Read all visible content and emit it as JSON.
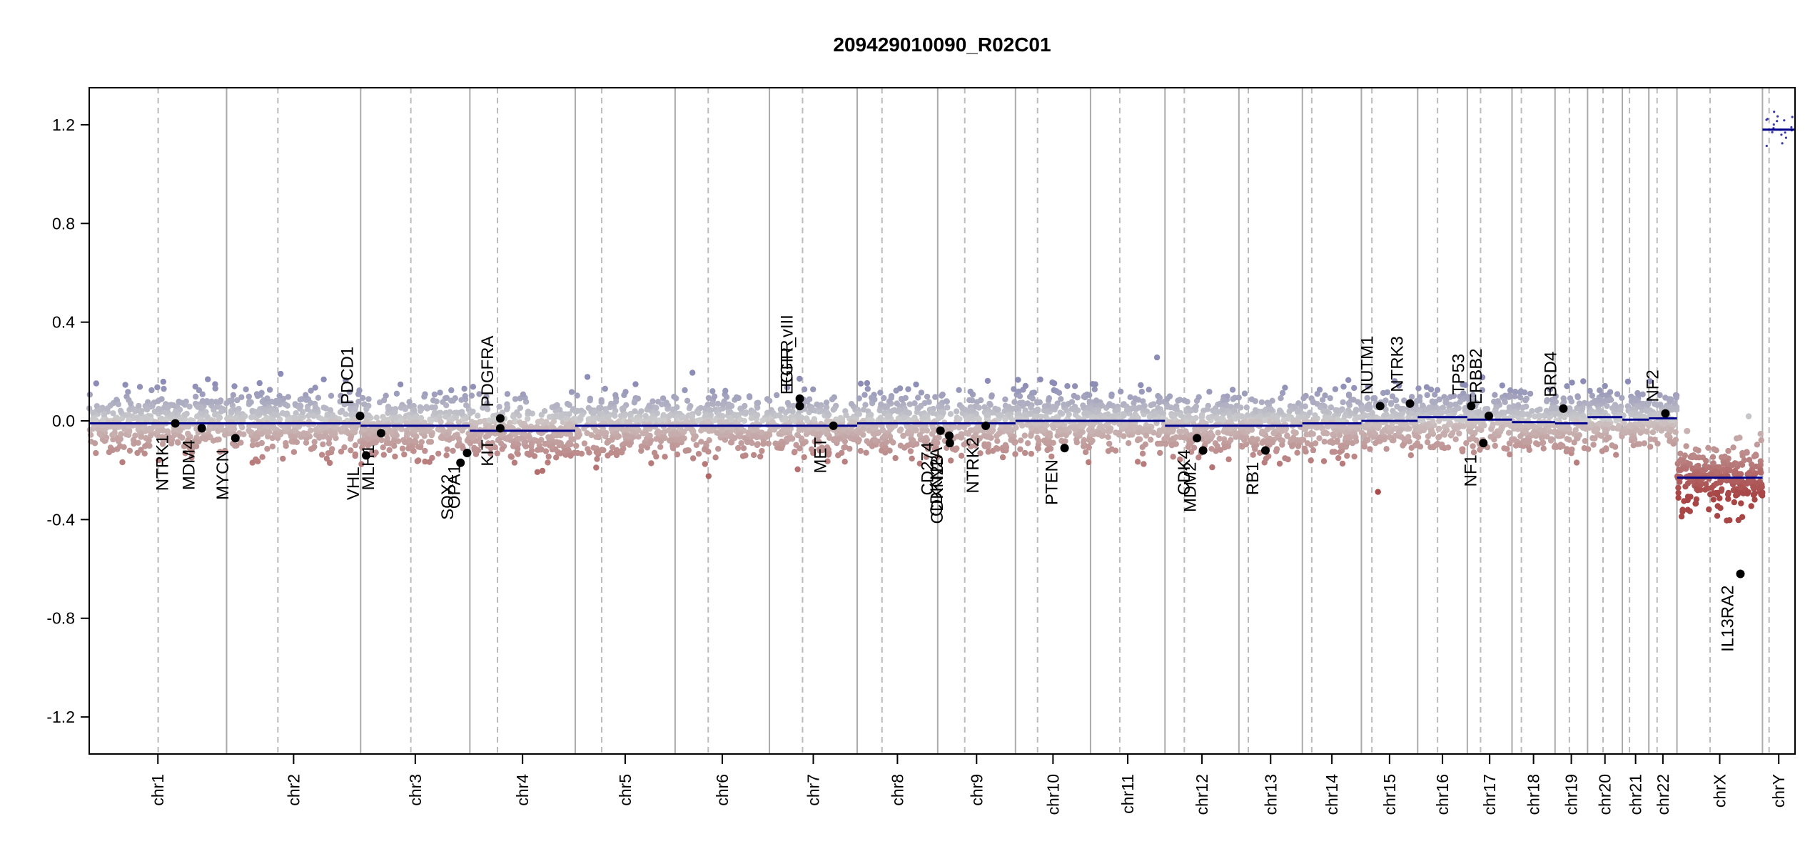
{
  "chart_data": {
    "type": "scatter",
    "title": "209429010090_R02C01",
    "xlabel": "",
    "ylabel": "",
    "ylim": [
      -1.35,
      1.35
    ],
    "yticks": [
      -1.2,
      -0.8,
      -0.4,
      0.0,
      0.4,
      0.8,
      1.2
    ],
    "ytick_labels": [
      "-1.2",
      "-0.8",
      "-0.4",
      "0.0",
      "0.4",
      "0.8",
      "1.2"
    ],
    "grid": false,
    "colors": {
      "gain": "#8e8eb4",
      "loss": "#a84a4a",
      "neutral": "#c8c8c8",
      "segment": "#00008b",
      "gene_point": "#000000",
      "chrom_boundary": "#aaaaaa",
      "centromere": "#bbbbbb"
    },
    "chromosomes": [
      {
        "name": "chr1",
        "length": 249,
        "centromere": 125,
        "segment_value": -0.01
      },
      {
        "name": "chr2",
        "length": 243,
        "centromere": 93,
        "segment_value": -0.01
      },
      {
        "name": "chr3",
        "length": 198,
        "centromere": 91,
        "segment_value": -0.02
      },
      {
        "name": "chr4",
        "length": 191,
        "centromere": 50,
        "segment_value": -0.04
      },
      {
        "name": "chr5",
        "length": 181,
        "centromere": 48,
        "segment_value": -0.02
      },
      {
        "name": "chr6",
        "length": 171,
        "centromere": 60,
        "segment_value": -0.02
      },
      {
        "name": "chr7",
        "length": 159,
        "centromere": 60,
        "segment_value": -0.02
      },
      {
        "name": "chr8",
        "length": 146,
        "centromere": 45,
        "segment_value": -0.01
      },
      {
        "name": "chr9",
        "length": 141,
        "centromere": 49,
        "segment_value": -0.01
      },
      {
        "name": "chr10",
        "length": 136,
        "centromere": 40,
        "segment_value": 0.0
      },
      {
        "name": "chr11",
        "length": 135,
        "centromere": 53,
        "segment_value": 0.0
      },
      {
        "name": "chr12",
        "length": 134,
        "centromere": 35,
        "segment_value": -0.02
      },
      {
        "name": "chr13",
        "length": 115,
        "centromere": 17,
        "segment_value": -0.02
      },
      {
        "name": "chr14",
        "length": 107,
        "centromere": 17,
        "segment_value": -0.01
      },
      {
        "name": "chr15",
        "length": 102,
        "centromere": 19,
        "segment_value": 0.0
      },
      {
        "name": "chr16",
        "length": 90,
        "centromere": 36,
        "segment_value": 0.015
      },
      {
        "name": "chr17",
        "length": 81,
        "centromere": 24,
        "segment_value": 0.005
      },
      {
        "name": "chr18",
        "length": 78,
        "centromere": 17,
        "segment_value": -0.005
      },
      {
        "name": "chr19",
        "length": 59,
        "centromere": 26,
        "segment_value": -0.01
      },
      {
        "name": "chr20",
        "length": 63,
        "centromere": 28,
        "segment_value": 0.015
      },
      {
        "name": "chr21",
        "length": 48,
        "centromere": 13,
        "segment_value": 0.005
      },
      {
        "name": "chr22",
        "length": 51,
        "centromere": 15,
        "segment_value": 0.01
      },
      {
        "name": "chrX",
        "length": 155,
        "centromere": 60,
        "segment_value": -0.23
      },
      {
        "name": "chrY",
        "length": 59,
        "centromere": 12,
        "segment_value": 1.18
      }
    ],
    "genes": [
      {
        "name": "NTRK1",
        "chr": "chr1",
        "pos": 156,
        "value": -0.01,
        "label_side": "below"
      },
      {
        "name": "MDM4",
        "chr": "chr1",
        "pos": 204,
        "value": -0.03,
        "label_side": "below"
      },
      {
        "name": "MYCN",
        "chr": "chr2",
        "pos": 16,
        "value": -0.07,
        "label_side": "below"
      },
      {
        "name": "PDCD1",
        "chr": "chr2",
        "pos": 242,
        "value": 0.02,
        "label_side": "above"
      },
      {
        "name": "VHL",
        "chr": "chr3",
        "pos": 10,
        "value": -0.14,
        "label_side": "below"
      },
      {
        "name": "MLH1",
        "chr": "chr3",
        "pos": 37,
        "value": -0.05,
        "label_side": "below"
      },
      {
        "name": "SOX2",
        "chr": "chr3",
        "pos": 181,
        "value": -0.17,
        "label_side": "below"
      },
      {
        "name": "OPA1",
        "chr": "chr3",
        "pos": 193,
        "value": -0.13,
        "label_side": "below"
      },
      {
        "name": "KIT",
        "chr": "chr4",
        "pos": 55,
        "value": -0.03,
        "label_side": "below"
      },
      {
        "name": "PDGFRA",
        "chr": "chr4",
        "pos": 55,
        "value": 0.01,
        "label_side": "above"
      },
      {
        "name": "EGFR",
        "chr": "chr7",
        "pos": 55,
        "value": 0.09,
        "label_side": "above"
      },
      {
        "name": "EGFR_vIII",
        "chr": "chr7",
        "pos": 55,
        "value": 0.06,
        "label_side": "above"
      },
      {
        "name": "MET",
        "chr": "chr7",
        "pos": 116,
        "value": -0.02,
        "label_side": "below"
      },
      {
        "name": "CD274",
        "chr": "chr9",
        "pos": 5,
        "value": -0.04,
        "label_side": "below"
      },
      {
        "name": "CDKN2A",
        "chr": "chr9",
        "pos": 21,
        "value": -0.06,
        "label_side": "below"
      },
      {
        "name": "CDKN2B",
        "chr": "chr9",
        "pos": 22,
        "value": -0.09,
        "label_side": "below"
      },
      {
        "name": "NTRK2",
        "chr": "chr9",
        "pos": 87,
        "value": -0.02,
        "label_side": "below"
      },
      {
        "name": "PTEN",
        "chr": "chr10",
        "pos": 89,
        "value": -0.11,
        "label_side": "below"
      },
      {
        "name": "CDK4",
        "chr": "chr12",
        "pos": 58,
        "value": -0.07,
        "label_side": "below"
      },
      {
        "name": "MDM2",
        "chr": "chr12",
        "pos": 69,
        "value": -0.12,
        "label_side": "below"
      },
      {
        "name": "RB1",
        "chr": "chr13",
        "pos": 48,
        "value": -0.12,
        "label_side": "below"
      },
      {
        "name": "NUTM1",
        "chr": "chr15",
        "pos": 34,
        "value": 0.06,
        "label_side": "above"
      },
      {
        "name": "NTRK3",
        "chr": "chr15",
        "pos": 88,
        "value": 0.07,
        "label_side": "above"
      },
      {
        "name": "TP53",
        "chr": "chr17",
        "pos": 7,
        "value": 0.06,
        "label_side": "above"
      },
      {
        "name": "NF1",
        "chr": "chr17",
        "pos": 29,
        "value": -0.09,
        "label_side": "below"
      },
      {
        "name": "ERBB2",
        "chr": "chr17",
        "pos": 39,
        "value": 0.02,
        "label_side": "above"
      },
      {
        "name": "BRD4",
        "chr": "chr19",
        "pos": 15,
        "value": 0.05,
        "label_side": "above"
      },
      {
        "name": "NF2",
        "chr": "chr22",
        "pos": 30,
        "value": 0.03,
        "label_side": "above"
      },
      {
        "name": "IL13RA2",
        "chr": "chrX",
        "pos": 115,
        "value": -0.62,
        "label_side": "below"
      }
    ]
  }
}
